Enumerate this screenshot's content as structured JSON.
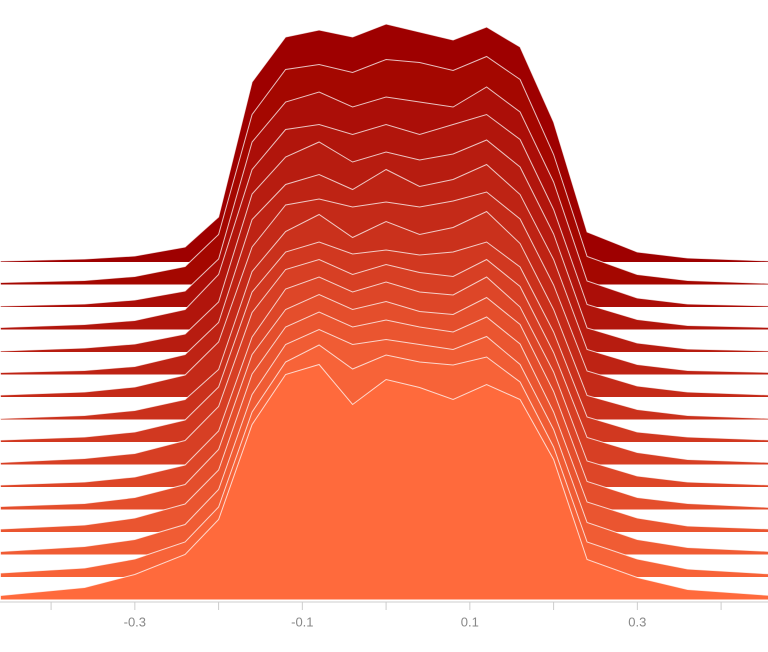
{
  "chart_data": {
    "type": "ridgeline",
    "xlim": [
      -0.461,
      0.456
    ],
    "xticks": [
      -0.3,
      -0.1,
      0.1,
      0.3
    ],
    "minor_xticks": [
      -0.4,
      -0.2,
      0,
      0.2,
      0.4
    ],
    "x": [
      -0.46,
      -0.36,
      -0.3,
      -0.24,
      -0.2,
      -0.16,
      -0.12,
      -0.08,
      -0.04,
      0,
      0.04,
      0.08,
      0.12,
      0.16,
      0.2,
      0.24,
      0.3,
      0.36,
      0.46
    ],
    "series": [
      {
        "color": "#9e0000",
        "values": [
          1,
          3,
          6,
          15,
          45,
          180,
          225,
          232,
          225,
          238,
          230,
          222,
          235,
          215,
          140,
          30,
          10,
          4,
          1
        ]
      },
      {
        "color": "#a40700",
        "values": [
          2,
          4,
          8,
          18,
          50,
          170,
          215,
          220,
          212,
          225,
          222,
          214,
          228,
          205,
          130,
          28,
          10,
          4,
          1
        ]
      },
      {
        "color": "#ab0e08",
        "values": [
          1,
          3,
          7,
          16,
          48,
          165,
          205,
          215,
          200,
          210,
          205,
          200,
          220,
          195,
          125,
          26,
          9,
          3,
          1
        ]
      },
      {
        "color": "#b1150c",
        "values": [
          2,
          5,
          9,
          20,
          55,
          160,
          200,
          205,
          195,
          205,
          195,
          205,
          215,
          190,
          120,
          25,
          10,
          4,
          2
        ]
      },
      {
        "color": "#b71c10",
        "values": [
          1,
          4,
          8,
          18,
          50,
          158,
          195,
          210,
          190,
          200,
          192,
          198,
          212,
          185,
          118,
          24,
          9,
          3,
          1
        ]
      },
      {
        "color": "#be2314",
        "values": [
          2,
          4,
          8,
          20,
          52,
          155,
          190,
          200,
          185,
          205,
          188,
          195,
          210,
          180,
          115,
          25,
          10,
          4,
          2
        ]
      },
      {
        "color": "#c42a18",
        "values": [
          2,
          5,
          10,
          22,
          55,
          150,
          192,
          198,
          190,
          195,
          190,
          196,
          205,
          178,
          112,
          26,
          11,
          5,
          2
        ]
      },
      {
        "color": "#ca311c",
        "values": [
          1,
          4,
          9,
          20,
          50,
          148,
          188,
          205,
          182,
          198,
          185,
          192,
          208,
          176,
          110,
          24,
          10,
          4,
          1
        ]
      },
      {
        "color": "#d13820",
        "values": [
          2,
          5,
          10,
          22,
          55,
          150,
          190,
          200,
          188,
          192,
          187,
          190,
          200,
          175,
          110,
          25,
          10,
          5,
          2
        ]
      },
      {
        "color": "#d73f24",
        "values": [
          2,
          6,
          11,
          24,
          58,
          152,
          195,
          205,
          190,
          200,
          192,
          188,
          205,
          178,
          112,
          27,
          12,
          5,
          2
        ]
      },
      {
        "color": "#dd4628",
        "values": [
          2,
          5,
          10,
          22,
          56,
          150,
          198,
          210,
          195,
          205,
          195,
          192,
          210,
          180,
          115,
          26,
          11,
          5,
          2
        ]
      },
      {
        "color": "#e44e2c",
        "values": [
          3,
          6,
          12,
          25,
          60,
          155,
          200,
          215,
          200,
          208,
          198,
          195,
          212,
          185,
          118,
          28,
          12,
          6,
          2
        ]
      },
      {
        "color": "#ea5530",
        "values": [
          3,
          7,
          14,
          28,
          62,
          158,
          205,
          220,
          205,
          212,
          205,
          200,
          215,
          188,
          120,
          30,
          14,
          6,
          3
        ]
      },
      {
        "color": "#f05c34",
        "values": [
          3,
          8,
          15,
          30,
          65,
          160,
          210,
          225,
          210,
          215,
          210,
          205,
          218,
          190,
          125,
          32,
          15,
          7,
          3
        ]
      },
      {
        "color": "#f76338",
        "values": [
          4,
          9,
          18,
          35,
          70,
          165,
          215,
          232,
          208,
          222,
          215,
          212,
          220,
          195,
          130,
          35,
          18,
          8,
          3
        ]
      },
      {
        "color": "#ff6a3c",
        "values": [
          4,
          12,
          25,
          45,
          80,
          175,
          225,
          235,
          195,
          220,
          212,
          200,
          215,
          200,
          140,
          40,
          22,
          10,
          4
        ]
      }
    ]
  }
}
